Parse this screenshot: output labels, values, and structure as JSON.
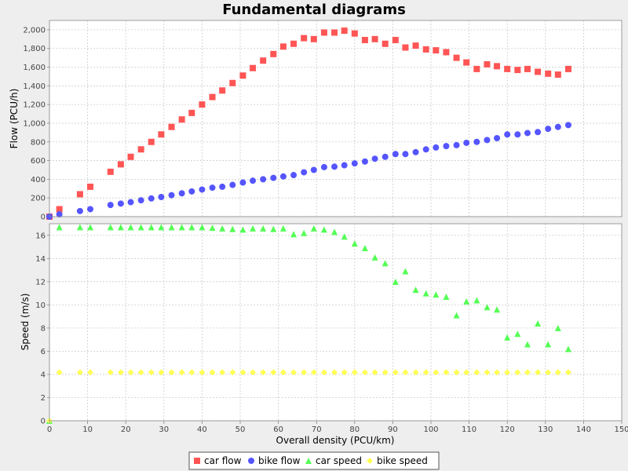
{
  "chart_data": {
    "type": "scatter",
    "title": "Fundamental diagrams",
    "xlabel": "Overall density (PCU/km)",
    "xlim": [
      0,
      150
    ],
    "xticks": [
      0,
      10,
      20,
      30,
      40,
      50,
      60,
      70,
      80,
      90,
      100,
      110,
      120,
      130,
      140,
      150
    ],
    "grid": true,
    "legend_position": "bottom",
    "panels": [
      {
        "name": "flow",
        "ylabel": "Flow (PCU/h)",
        "ylim": [
          0,
          2100
        ],
        "yticks": [
          0,
          200,
          400,
          600,
          800,
          1000,
          1200,
          1400,
          1600,
          1800,
          2000
        ],
        "ytick_labels": [
          "0",
          "200",
          "400",
          "600",
          "800",
          "1,000",
          "1,200",
          "1,400",
          "1,600",
          "1,800",
          "2,000"
        ],
        "series": [
          {
            "name": "car flow",
            "marker": "square",
            "color": "#ff5555",
            "x": [
              0,
              2.6,
              8,
              10.7,
              16,
              18.7,
              21.3,
              24,
              26.7,
              29.3,
              32,
              34.7,
              37.3,
              40,
              42.7,
              45.3,
              48,
              50.7,
              53.3,
              56,
              58.7,
              61.3,
              64,
              66.7,
              69.3,
              72,
              74.7,
              77.3,
              80,
              82.7,
              85.3,
              88,
              90.7,
              93.3,
              96,
              98.7,
              101.3,
              104,
              106.7,
              109.3,
              112,
              114.7,
              117.3,
              120,
              122.7,
              125.3,
              128,
              130.7,
              133.3,
              136
            ],
            "y": [
              0,
              80,
              240,
              320,
              480,
              560,
              640,
              720,
              800,
              880,
              960,
              1040,
              1110,
              1200,
              1280,
              1350,
              1430,
              1510,
              1590,
              1670,
              1740,
              1820,
              1850,
              1910,
              1900,
              1970,
              1970,
              1990,
              1960,
              1890,
              1900,
              1850,
              1890,
              1810,
              1830,
              1790,
              1780,
              1760,
              1700,
              1650,
              1580,
              1630,
              1610,
              1580,
              1570,
              1580,
              1550,
              1530,
              1520,
              1580
            ]
          },
          {
            "name": "bike flow",
            "marker": "circle",
            "color": "#5555ff",
            "x": [
              0,
              2.6,
              8,
              10.7,
              16,
              18.7,
              21.3,
              24,
              26.7,
              29.3,
              32,
              34.7,
              37.3,
              40,
              42.7,
              45.3,
              48,
              50.7,
              53.3,
              56,
              58.7,
              61.3,
              64,
              66.7,
              69.3,
              72,
              74.7,
              77.3,
              80,
              82.7,
              85.3,
              88,
              90.7,
              93.3,
              96,
              98.7,
              101.3,
              104,
              106.7,
              109.3,
              112,
              114.7,
              117.3,
              120,
              122.7,
              125.3,
              128,
              130.7,
              133.3,
              136
            ],
            "y": [
              0,
              25,
              60,
              80,
              125,
              140,
              155,
              175,
              195,
              210,
              230,
              250,
              270,
              290,
              310,
              320,
              340,
              365,
              385,
              400,
              415,
              430,
              445,
              475,
              500,
              530,
              535,
              550,
              570,
              590,
              620,
              640,
              670,
              670,
              690,
              720,
              740,
              755,
              765,
              790,
              800,
              820,
              840,
              880,
              880,
              895,
              905,
              940,
              960,
              980
            ]
          }
        ]
      },
      {
        "name": "speed",
        "ylabel": "Speed (m/s)",
        "ylim": [
          0,
          17
        ],
        "yticks": [
          0,
          2,
          4,
          6,
          8,
          10,
          12,
          14,
          16
        ],
        "ytick_labels": [
          "0",
          "2",
          "4",
          "6",
          "8",
          "10",
          "12",
          "14",
          "16"
        ],
        "series": [
          {
            "name": "car speed",
            "marker": "triangle",
            "color": "#55ff55",
            "x": [
              0,
              2.6,
              8,
              10.7,
              16,
              18.7,
              21.3,
              24,
              26.7,
              29.3,
              32,
              34.7,
              37.3,
              40,
              42.7,
              45.3,
              48,
              50.7,
              53.3,
              56,
              58.7,
              61.3,
              64,
              66.7,
              69.3,
              72,
              74.7,
              77.3,
              80,
              82.7,
              85.3,
              88,
              90.7,
              93.3,
              96,
              98.7,
              101.3,
              104,
              106.7,
              109.3,
              112,
              114.7,
              117.3,
              120,
              122.7,
              125.3,
              128,
              130.7,
              133.3,
              136
            ],
            "y": [
              0,
              16.7,
              16.7,
              16.7,
              16.7,
              16.7,
              16.7,
              16.7,
              16.7,
              16.7,
              16.7,
              16.7,
              16.7,
              16.7,
              16.65,
              16.6,
              16.55,
              16.5,
              16.6,
              16.6,
              16.55,
              16.6,
              16.1,
              16.2,
              16.6,
              16.5,
              16.3,
              15.9,
              15.3,
              14.9,
              14.1,
              13.6,
              12.0,
              12.9,
              11.3,
              11.0,
              10.9,
              10.7,
              9.1,
              10.3,
              10.4,
              9.8,
              9.6,
              7.2,
              7.5,
              6.6,
              8.4,
              6.6,
              8.0,
              6.2
            ]
          },
          {
            "name": "bike speed",
            "marker": "diamond",
            "color": "#ffff55",
            "x": [
              0,
              2.6,
              8,
              10.7,
              16,
              18.7,
              21.3,
              24,
              26.7,
              29.3,
              32,
              34.7,
              37.3,
              40,
              42.7,
              45.3,
              48,
              50.7,
              53.3,
              56,
              58.7,
              61.3,
              64,
              66.7,
              69.3,
              72,
              74.7,
              77.3,
              80,
              82.7,
              85.3,
              88,
              90.7,
              93.3,
              96,
              98.7,
              101.3,
              104,
              106.7,
              109.3,
              112,
              114.7,
              117.3,
              120,
              122.7,
              125.3,
              128,
              130.7,
              133.3,
              136
            ],
            "y": [
              0,
              4.17,
              4.17,
              4.17,
              4.17,
              4.17,
              4.17,
              4.17,
              4.17,
              4.17,
              4.17,
              4.17,
              4.17,
              4.17,
              4.17,
              4.17,
              4.17,
              4.17,
              4.17,
              4.17,
              4.17,
              4.17,
              4.17,
              4.17,
              4.17,
              4.17,
              4.17,
              4.17,
              4.17,
              4.17,
              4.17,
              4.17,
              4.17,
              4.17,
              4.17,
              4.17,
              4.17,
              4.17,
              4.17,
              4.17,
              4.17,
              4.17,
              4.17,
              4.17,
              4.17,
              4.17,
              4.17,
              4.17,
              4.17,
              4.17
            ]
          }
        ]
      }
    ],
    "legend": [
      "car flow",
      "bike flow",
      "car speed",
      "bike speed"
    ]
  }
}
